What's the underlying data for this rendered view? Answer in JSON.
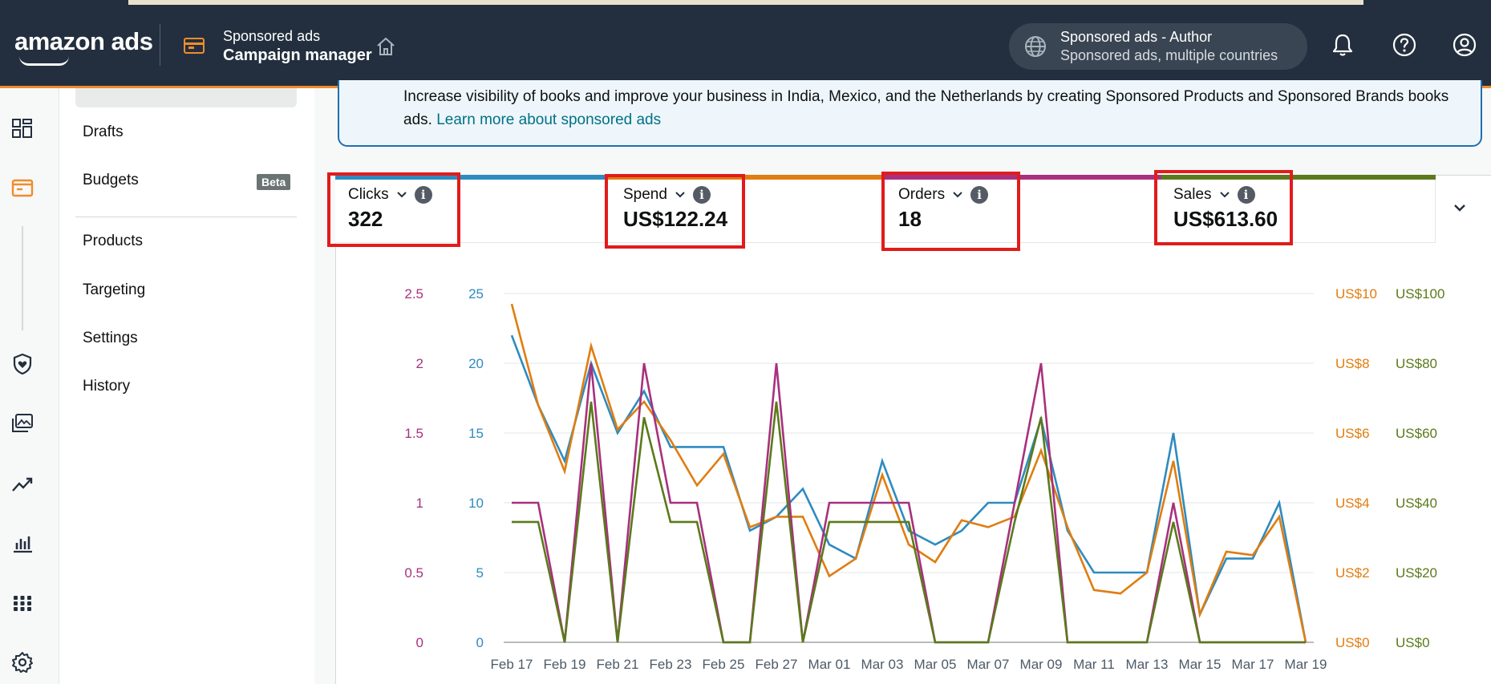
{
  "header": {
    "logo": "amazon ads",
    "app_sub": "Sponsored ads",
    "app_main": "Campaign manager",
    "account_line1": "Sponsored ads - Author",
    "account_line2": "Sponsored ads, multiple countries",
    "icons": [
      "home-icon",
      "globe-icon",
      "bell-icon",
      "help-icon",
      "user-icon"
    ]
  },
  "rail": {
    "icons": [
      "dashboard-icon",
      "campaign-icon",
      "shield-icon",
      "creative-icon",
      "trend-icon",
      "report-icon",
      "apps-icon",
      "settings-icon"
    ]
  },
  "subnav": {
    "items": [
      {
        "label": "Drafts"
      },
      {
        "label": "Budgets"
      },
      {
        "label": "Products"
      },
      {
        "label": "Targeting"
      },
      {
        "label": "Settings"
      },
      {
        "label": "History"
      }
    ],
    "beta": "Beta"
  },
  "banner": {
    "text": "Increase visibility of books and improve your business in India, Mexico, and the Netherlands by creating Sponsored Products and Sponsored Brands books ads.",
    "link": "Learn more about sponsored ads"
  },
  "metrics": [
    {
      "label": "Clicks",
      "value": "322",
      "color": "#2e8bc0"
    },
    {
      "label": "Spend",
      "value": "US$122.24",
      "color": "#e07d10"
    },
    {
      "label": "Orders",
      "value": "18",
      "color": "#a8307e"
    },
    {
      "label": "Sales",
      "value": "US$613.60",
      "color": "#5b7a1b"
    }
  ],
  "chart_data": {
    "type": "line",
    "x_tick_labels": [
      "Feb 17",
      "Feb 19",
      "Feb 21",
      "Feb 23",
      "Feb 25",
      "Feb 27",
      "Mar 01",
      "Mar 03",
      "Mar 05",
      "Mar 07",
      "Mar 09",
      "Mar 11",
      "Mar 13",
      "Mar 15",
      "Mar 17",
      "Mar 19"
    ],
    "x": [
      "Feb 17",
      "Feb 18",
      "Feb 19",
      "Feb 20",
      "Feb 21",
      "Feb 22",
      "Feb 23",
      "Feb 24",
      "Feb 25",
      "Feb 26",
      "Feb 27",
      "Feb 28",
      "Mar 01",
      "Mar 02",
      "Mar 03",
      "Mar 04",
      "Mar 05",
      "Mar 06",
      "Mar 07",
      "Mar 08",
      "Mar 09",
      "Mar 10",
      "Mar 11",
      "Mar 12",
      "Mar 13",
      "Mar 14",
      "Mar 15",
      "Mar 16",
      "Mar 17",
      "Mar 18",
      "Mar 19"
    ],
    "axes": {
      "orders": {
        "ticks": [
          "0",
          "0.5",
          "1",
          "1.5",
          "2",
          "2.5"
        ],
        "max": 2.5,
        "color": "#a8307e"
      },
      "clicks": {
        "ticks": [
          "0",
          "5",
          "10",
          "15",
          "20",
          "25"
        ],
        "max": 25,
        "color": "#2e8bc0"
      },
      "spend": {
        "ticks": [
          "US$0",
          "US$2",
          "US$4",
          "US$6",
          "US$8",
          "US$10"
        ],
        "max": 10,
        "color": "#e07d10"
      },
      "sales": {
        "ticks": [
          "US$0",
          "US$20",
          "US$40",
          "US$60",
          "US$80",
          "US$100"
        ],
        "max": 100,
        "color": "#5b7a1b"
      }
    },
    "series": [
      {
        "name": "Clicks",
        "axis": "clicks",
        "color": "#2e8bc0",
        "values": [
          22,
          17,
          13,
          20,
          15,
          18,
          14,
          14,
          14,
          8,
          9,
          11,
          7,
          6,
          13,
          8,
          7,
          8,
          10,
          10,
          16,
          8,
          5,
          5,
          5,
          15,
          2,
          6,
          6,
          10,
          0
        ]
      },
      {
        "name": "Spend",
        "axis": "spend",
        "color": "#e07d10",
        "values": [
          9.7,
          6.8,
          4.9,
          8.5,
          6.1,
          6.9,
          5.8,
          4.5,
          5.4,
          3.3,
          3.6,
          3.6,
          1.9,
          2.4,
          4.8,
          2.8,
          2.3,
          3.5,
          3.3,
          3.6,
          5.5,
          3.3,
          1.5,
          1.4,
          2.0,
          5.2,
          0.8,
          2.6,
          2.5,
          3.6,
          0
        ]
      },
      {
        "name": "Orders",
        "axis": "orders",
        "color": "#a8307e",
        "values": [
          1,
          1,
          0,
          2,
          0,
          2,
          1,
          1,
          0,
          0,
          2,
          0,
          1,
          1,
          1,
          1,
          0,
          0,
          0,
          1,
          2,
          0,
          0,
          0,
          0,
          1,
          0,
          0,
          0,
          0,
          0
        ]
      },
      {
        "name": "Sales",
        "axis": "sales",
        "color": "#5b7a1b",
        "values": [
          34.5,
          34.5,
          0,
          69,
          0,
          64.5,
          34.5,
          34.5,
          0,
          0,
          69,
          0,
          34.5,
          34.5,
          34.5,
          34.5,
          0,
          0,
          0,
          34.5,
          64.5,
          0,
          0,
          0,
          0,
          34.5,
          0,
          0,
          0,
          0,
          0
        ]
      }
    ]
  }
}
